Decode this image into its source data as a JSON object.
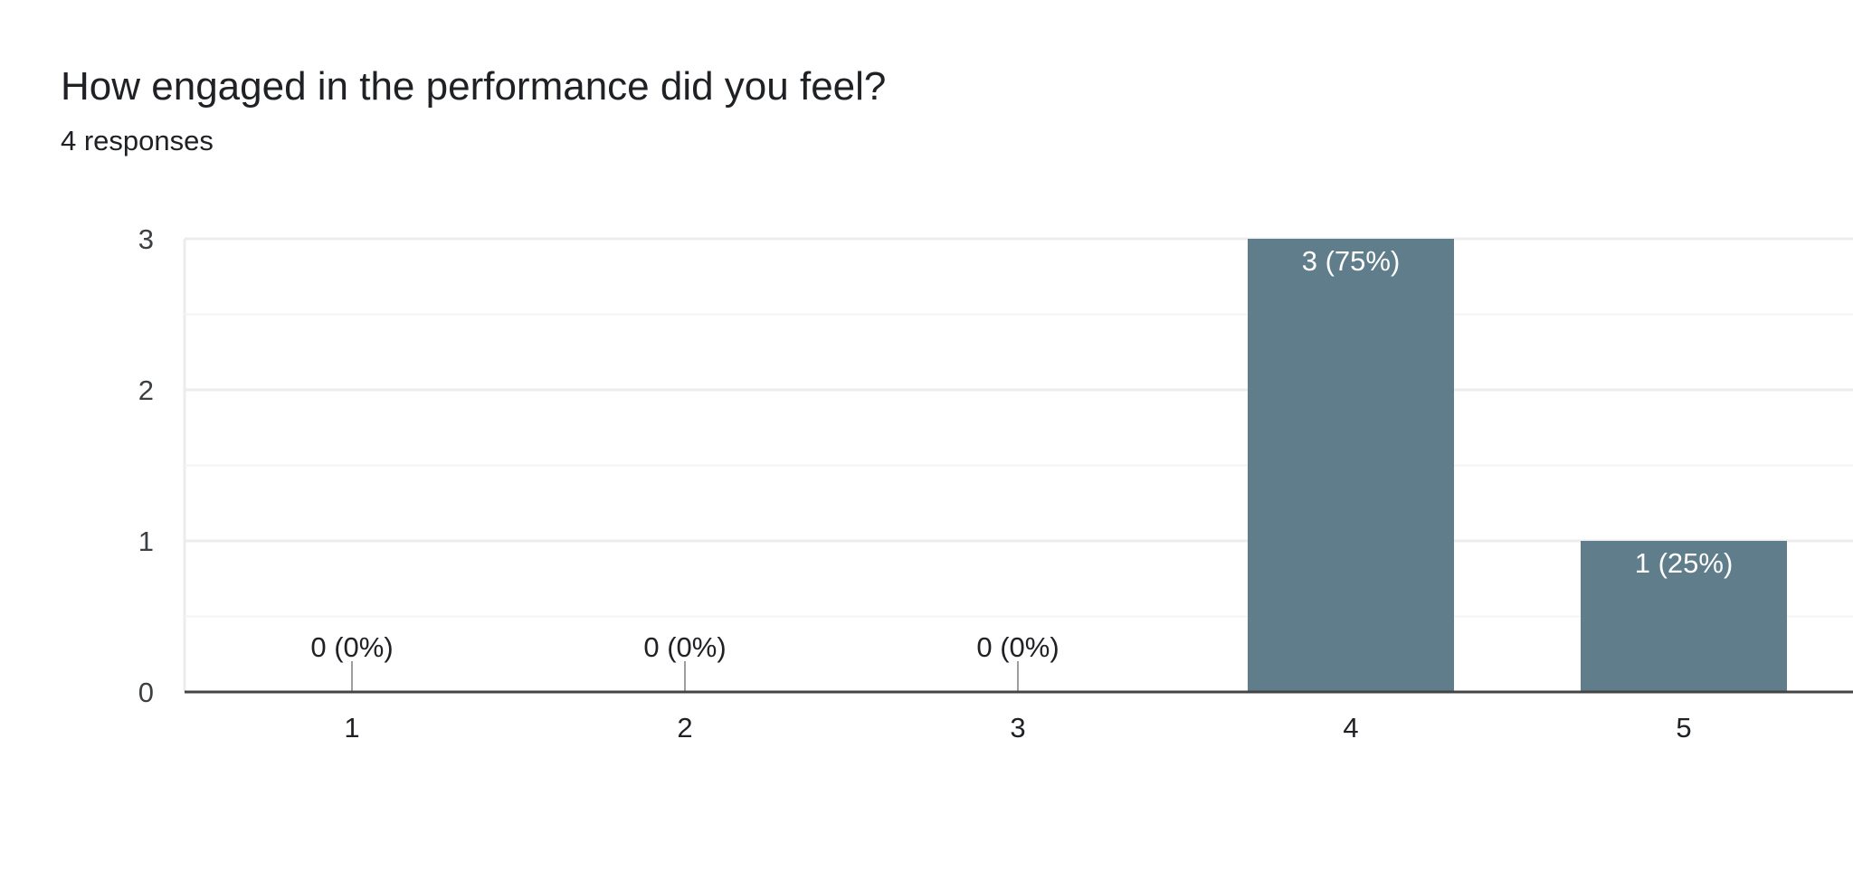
{
  "card": {
    "title": "How engaged in the performance did you feel?",
    "subtitle": "4 responses"
  },
  "colors": {
    "bar": "#607d8b",
    "grid_major": "#ececec",
    "grid_minor": "#f4f4f4",
    "baseline": "#444444",
    "zero_marker": "#9e9e9e",
    "label_inside": "#ffffff",
    "label_outside": "#202124"
  },
  "chart_data": {
    "type": "bar",
    "categories": [
      "1",
      "2",
      "3",
      "4",
      "5"
    ],
    "values": [
      0,
      0,
      0,
      3,
      1
    ],
    "data_labels": [
      "0 (0%)",
      "0 (0%)",
      "0 (0%)",
      "3 (75%)",
      "1 (25%)"
    ],
    "y_ticks": [
      "0",
      "1",
      "2",
      "3"
    ],
    "ylim": [
      0,
      3
    ],
    "minor_gridlines": true,
    "legend": "none",
    "title": "How engaged in the performance did you feel?",
    "xlabel": "",
    "ylabel": ""
  }
}
